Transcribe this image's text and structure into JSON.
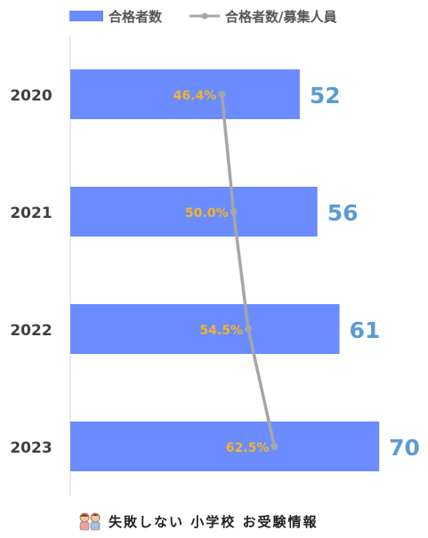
{
  "chart_data": {
    "type": "bar",
    "orientation": "horizontal",
    "categories": [
      "2020",
      "2021",
      "2022",
      "2023"
    ],
    "series": [
      {
        "name": "合格者数",
        "kind": "bar",
        "values": [
          52,
          56,
          61,
          70
        ],
        "labels": [
          "52",
          "56",
          "61",
          "70"
        ],
        "color": "#6a8cff",
        "label_color": "#5b9bd5"
      },
      {
        "name": "合格者数/募集人員",
        "kind": "line",
        "values": [
          46.4,
          50.0,
          54.5,
          62.5
        ],
        "labels": [
          "46.4%",
          "50.0%",
          "54.5%",
          "62.5%"
        ],
        "color": "#a6a6a6",
        "label_color": "#f4b42a"
      }
    ],
    "bar_axis_range": [
      0,
      74
    ],
    "line_axis_range": [
      0,
      100
    ],
    "grid": false,
    "legend_position": "top"
  },
  "footer": {
    "brand_text": "失敗しない 小学校 お受験情報",
    "brand_icon": "children-icon"
  }
}
